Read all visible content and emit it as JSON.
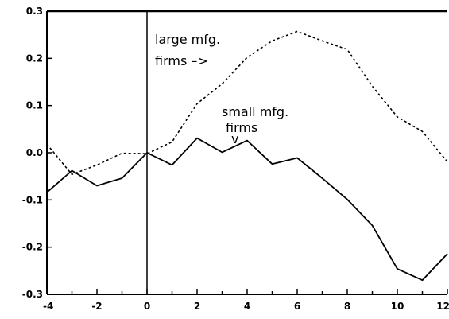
{
  "chart_data": {
    "type": "line",
    "xlim": [
      -4,
      12
    ],
    "ylim": [
      -0.3,
      0.3
    ],
    "x_ticks": [
      "-4",
      "-2",
      "0",
      "2",
      "4",
      "6",
      "8",
      "10",
      "12"
    ],
    "y_ticks": [
      "0.3",
      "0.2",
      "0.1",
      "0.0",
      "-0.1",
      "-0.2",
      "-0.3"
    ],
    "vertical_reference_line_x": 0,
    "series": [
      {
        "name": "large mfg. firms",
        "style": "dotted",
        "x": [
          -4,
          -3,
          -2,
          -1,
          0,
          1,
          2,
          3,
          4,
          5,
          6,
          7,
          8,
          9,
          10,
          11,
          12
        ],
        "y": [
          0.018,
          -0.046,
          -0.026,
          -0.001,
          -0.002,
          0.023,
          0.104,
          0.146,
          0.202,
          0.237,
          0.257,
          0.237,
          0.219,
          0.141,
          0.076,
          0.045,
          -0.019
        ]
      },
      {
        "name": "small mfg. firms",
        "style": "solid",
        "x": [
          -4,
          -3,
          -2,
          -1,
          0,
          1,
          2,
          3,
          4,
          5,
          6,
          7,
          8,
          9,
          10,
          11,
          12
        ],
        "y": [
          -0.084,
          -0.038,
          -0.07,
          -0.054,
          0.0,
          -0.026,
          0.031,
          0.001,
          0.026,
          -0.024,
          -0.011,
          -0.054,
          -0.099,
          -0.154,
          -0.246,
          -0.27,
          -0.214
        ]
      }
    ],
    "annotations": {
      "large_line1": "large mfg.",
      "large_line2": "firms  –>",
      "small_line1": "small mfg.",
      "small_line2": "firms",
      "small_arrow": "v"
    }
  }
}
